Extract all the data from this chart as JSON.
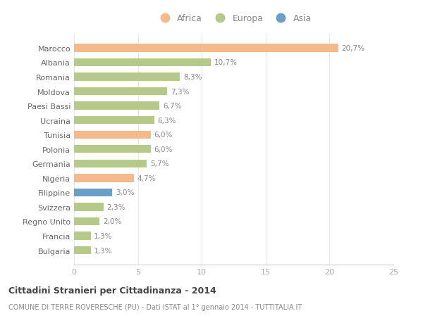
{
  "countries": [
    "Marocco",
    "Albania",
    "Romania",
    "Moldova",
    "Paesi Bassi",
    "Ucraina",
    "Tunisia",
    "Polonia",
    "Germania",
    "Nigeria",
    "Filippine",
    "Svizzera",
    "Regno Unito",
    "Francia",
    "Bulgaria"
  ],
  "values": [
    20.7,
    10.7,
    8.3,
    7.3,
    6.7,
    6.3,
    6.0,
    6.0,
    5.7,
    4.7,
    3.0,
    2.3,
    2.0,
    1.3,
    1.3
  ],
  "labels": [
    "20,7%",
    "10,7%",
    "8,3%",
    "7,3%",
    "6,7%",
    "6,3%",
    "6,0%",
    "6,0%",
    "5,7%",
    "4,7%",
    "3,0%",
    "2,3%",
    "2,0%",
    "1,3%",
    "1,3%"
  ],
  "continents": [
    "Africa",
    "Europa",
    "Europa",
    "Europa",
    "Europa",
    "Europa",
    "Africa",
    "Europa",
    "Europa",
    "Africa",
    "Asia",
    "Europa",
    "Europa",
    "Europa",
    "Europa"
  ],
  "colors": {
    "Africa": "#F5BA8B",
    "Europa": "#B5C98A",
    "Asia": "#6B9FC8"
  },
  "title": "Cittadini Stranieri per Cittadinanza - 2014",
  "subtitle": "COMUNE DI TERRE ROVERESCHE (PU) - Dati ISTAT al 1° gennaio 2014 - TUTTITALIA.IT",
  "xlim": [
    0,
    25
  ],
  "xticks": [
    0,
    5,
    10,
    15,
    20,
    25
  ],
  "background_color": "#ffffff",
  "bar_height": 0.55,
  "grid_color": "#e8e8e8",
  "label_color": "#888888",
  "ytick_color": "#666666",
  "xtick_color": "#aaaaaa"
}
